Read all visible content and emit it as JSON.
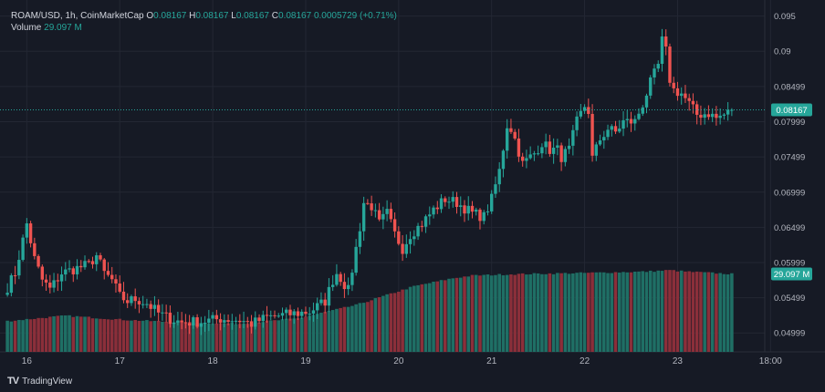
{
  "header": {
    "symbol": "ROAM/USD, 1h, CoinMarketCap",
    "o_label": "O",
    "o_value": "0.08167",
    "h_label": "H",
    "h_value": "0.08167",
    "l_label": "L",
    "l_value": "0.08167",
    "c_label": "C",
    "c_value": "0.08167",
    "change": "0.0005729 (+0.71%)",
    "volume_label": "Volume",
    "volume_value": "29.097 M"
  },
  "footer": {
    "brand": "TradingView",
    "logo_text": "TV"
  },
  "colors": {
    "up": "#26a69a",
    "down": "#ef5350",
    "up_vol": "#1f6f65",
    "down_vol": "#8b2f3a",
    "background": "#161a25",
    "grid": "#232733",
    "text": "#b2b5be"
  },
  "chart_data": {
    "type": "candlestick",
    "title": "ROAM/USD, 1h, CoinMarketCap",
    "y_ticks": [
      "0.095",
      "0.09",
      "0.08499",
      "0.07999",
      "0.07499",
      "0.06999",
      "0.06499",
      "0.05999",
      "0.05499",
      "0.04999"
    ],
    "x_ticks": [
      "16",
      "17",
      "18",
      "19",
      "20",
      "21",
      "22",
      "23",
      "18:00"
    ],
    "ylim": [
      0.0473,
      0.0965
    ],
    "last_price": "0.08167",
    "last_volume": "29.097 M",
    "close_path": [
      [
        0,
        0.0565
      ],
      [
        2,
        0.0585
      ],
      [
        5,
        0.0655
      ],
      [
        7,
        0.0605
      ],
      [
        9,
        0.0575
      ],
      [
        11,
        0.0562
      ],
      [
        14,
        0.0585
      ],
      [
        18,
        0.0592
      ],
      [
        21,
        0.0597
      ],
      [
        23,
        0.061
      ],
      [
        25,
        0.0585
      ],
      [
        27,
        0.0575
      ],
      [
        29,
        0.0552
      ],
      [
        31,
        0.0545
      ],
      [
        33,
        0.0548
      ],
      [
        36,
        0.0542
      ],
      [
        39,
        0.0528
      ],
      [
        42,
        0.052
      ],
      [
        45,
        0.0515
      ],
      [
        50,
        0.0516
      ],
      [
        55,
        0.052
      ],
      [
        60,
        0.0518
      ],
      [
        63,
        0.0513
      ],
      [
        67,
        0.0522
      ],
      [
        72,
        0.0526
      ],
      [
        78,
        0.053
      ],
      [
        82,
        0.0545
      ],
      [
        84,
        0.0575
      ],
      [
        85,
        0.0585
      ],
      [
        86,
        0.0578
      ],
      [
        88,
        0.056
      ],
      [
        89,
        0.059
      ],
      [
        91,
        0.065
      ],
      [
        92,
        0.0685
      ],
      [
        94,
        0.068
      ],
      [
        96,
        0.0655
      ],
      [
        98,
        0.067
      ],
      [
        100,
        0.064
      ],
      [
        102,
        0.062
      ],
      [
        104,
        0.064
      ],
      [
        107,
        0.0655
      ],
      [
        110,
        0.0675
      ],
      [
        113,
        0.069
      ],
      [
        116,
        0.0685
      ],
      [
        120,
        0.067
      ],
      [
        123,
        0.0665
      ],
      [
        125,
        0.069
      ],
      [
        127,
        0.073
      ],
      [
        129,
        0.0795
      ],
      [
        130,
        0.079
      ],
      [
        131,
        0.0775
      ],
      [
        133,
        0.074
      ],
      [
        136,
        0.0755
      ],
      [
        138,
        0.077
      ],
      [
        140,
        0.076
      ],
      [
        142,
        0.076
      ],
      [
        143,
        0.075
      ],
      [
        145,
        0.076
      ],
      [
        147,
        0.08
      ],
      [
        149,
        0.0822
      ],
      [
        150,
        0.0815
      ],
      [
        151,
        0.0748
      ],
      [
        153,
        0.0775
      ],
      [
        155,
        0.079
      ],
      [
        157,
        0.0785
      ],
      [
        159,
        0.08
      ],
      [
        162,
        0.08
      ],
      [
        164,
        0.0825
      ],
      [
        166,
        0.0855
      ],
      [
        168,
        0.088
      ],
      [
        169,
        0.0915
      ],
      [
        170,
        0.09
      ],
      [
        171,
        0.086
      ],
      [
        172,
        0.0845
      ],
      [
        174,
        0.084
      ],
      [
        176,
        0.0825
      ],
      [
        178,
        0.081
      ],
      [
        181,
        0.0812
      ],
      [
        183,
        0.0805
      ],
      [
        185,
        0.081
      ],
      [
        187,
        0.0815
      ]
    ],
    "volume_path": [
      [
        0,
        11.5
      ],
      [
        15,
        13.5
      ],
      [
        30,
        12.0
      ],
      [
        45,
        11.0
      ],
      [
        60,
        10.5
      ],
      [
        75,
        12.5
      ],
      [
        90,
        17.5
      ],
      [
        105,
        24.5
      ],
      [
        115,
        27.5
      ],
      [
        120,
        28.5
      ],
      [
        130,
        29.0
      ],
      [
        150,
        29.5
      ],
      [
        165,
        30.0
      ],
      [
        171,
        30.5
      ],
      [
        175,
        30.0
      ],
      [
        187,
        29.1
      ]
    ],
    "candle_count": 188,
    "volume_max": 32
  }
}
